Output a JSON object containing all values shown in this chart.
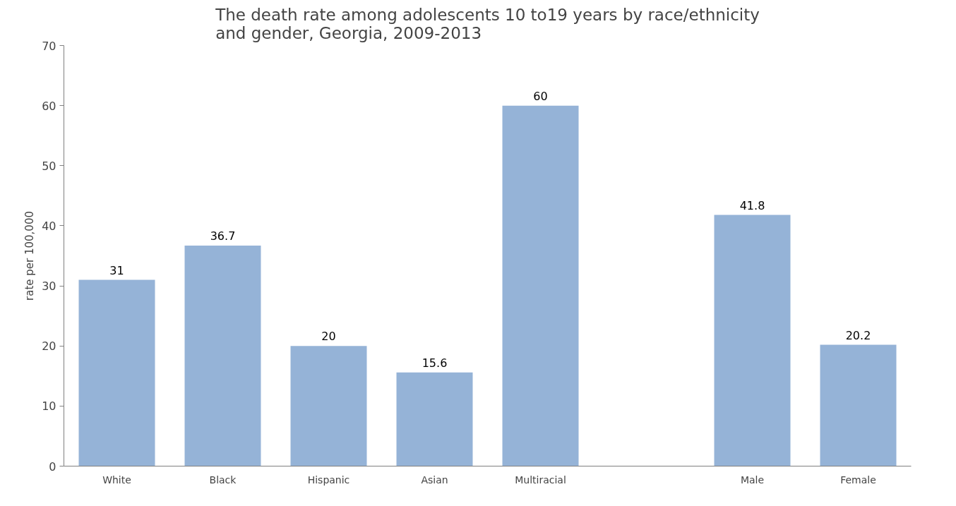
{
  "chart_data": {
    "type": "bar",
    "title": "The death rate among adolescents 10 to19 years by race/ethnicity and gender, Georgia, 2009-2013",
    "ylabel": "rate per 100,000",
    "categories": [
      "White",
      "Black",
      "Hispanic",
      "Asian",
      "Multiracial",
      null,
      "Male",
      "Female"
    ],
    "values": [
      31,
      36.7,
      20,
      15.6,
      60,
      null,
      41.8,
      20.2
    ],
    "color": "#95b3d7",
    "ylim": [
      0,
      70
    ],
    "yticks": [
      0,
      10,
      20,
      30,
      40,
      50,
      60,
      70
    ],
    "grid": false,
    "data_labels": true
  }
}
